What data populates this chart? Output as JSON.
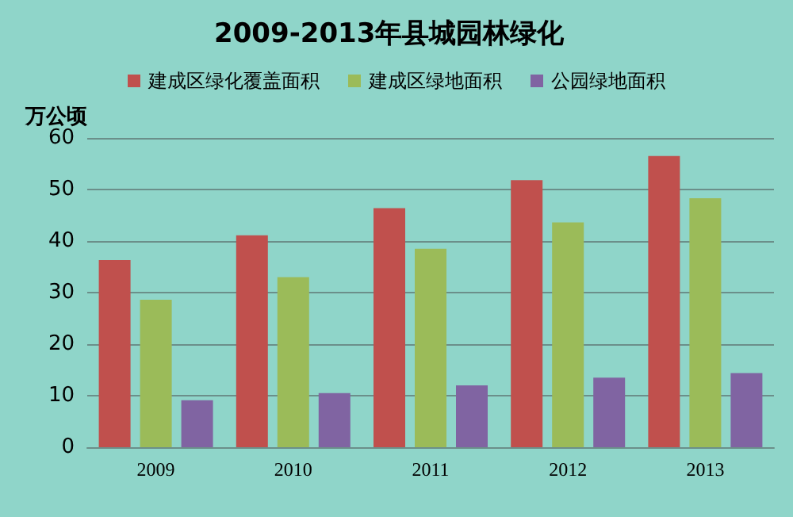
{
  "chart_data": {
    "type": "bar",
    "title": "2009-2013年县城园林绿化",
    "ylabel": "万公顷",
    "categories": [
      "2009",
      "2010",
      "2011",
      "2012",
      "2013"
    ],
    "series": [
      {
        "name": "建成区绿化覆盖面积",
        "color": "#c0504d",
        "values": [
          36.3,
          41.1,
          46.4,
          51.8,
          56.5
        ]
      },
      {
        "name": "建成区绿地面积",
        "color": "#9bbb59",
        "values": [
          28.6,
          33.0,
          38.5,
          43.6,
          48.3
        ]
      },
      {
        "name": "公园绿地面积",
        "color": "#8064a2",
        "values": [
          9.1,
          10.5,
          12.0,
          13.5,
          14.4
        ]
      }
    ],
    "ylim": [
      0,
      60
    ],
    "yticks": [
      0,
      10,
      20,
      30,
      40,
      50,
      60
    ],
    "grid": "y",
    "legend": "top"
  }
}
